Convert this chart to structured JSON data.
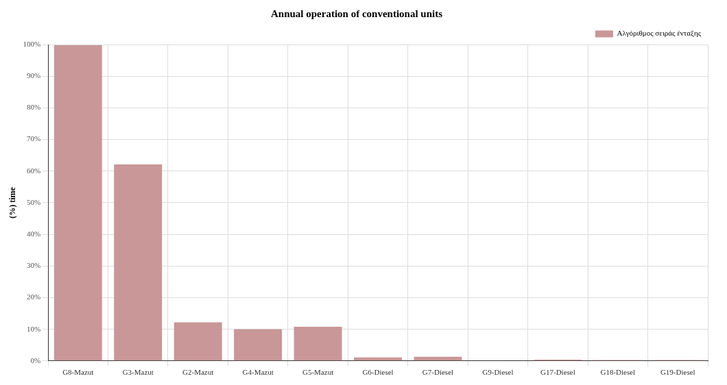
{
  "chart_data": {
    "type": "bar",
    "title": "Annual operation of conventional units",
    "ylabel": "(%) time",
    "categories": [
      "G8-Mazut",
      "G3-Mazut",
      "G2-Mazut",
      "G4-Mazut",
      "G5-Mazut",
      "G6-Diesel",
      "G7-Diesel",
      "G9-Diesel",
      "G17-Diesel",
      "G18-Diesel",
      "G19-Diesel"
    ],
    "series": [
      {
        "name": "Αλγόριθμος σειράς ένταξης",
        "color": "#c99797",
        "values": [
          99.8,
          62.1,
          12.2,
          10.0,
          10.8,
          1.1,
          1.3,
          0,
          0.4,
          0.3,
          0.3
        ]
      }
    ],
    "ylim": [
      0,
      100
    ],
    "yticks": [
      {
        "value": 0,
        "label": "0%"
      },
      {
        "value": 10,
        "label": "10%"
      },
      {
        "value": 20,
        "label": "20%"
      },
      {
        "value": 30,
        "label": "30%"
      },
      {
        "value": 40,
        "label": "40%"
      },
      {
        "value": 50,
        "label": "50%"
      },
      {
        "value": 60,
        "label": "60%"
      },
      {
        "value": 70,
        "label": "70%"
      },
      {
        "value": 80,
        "label": "80%"
      },
      {
        "value": 90,
        "label": "90%"
      },
      {
        "value": 100,
        "label": "100%"
      }
    ],
    "grid": true,
    "legend": "top right"
  }
}
